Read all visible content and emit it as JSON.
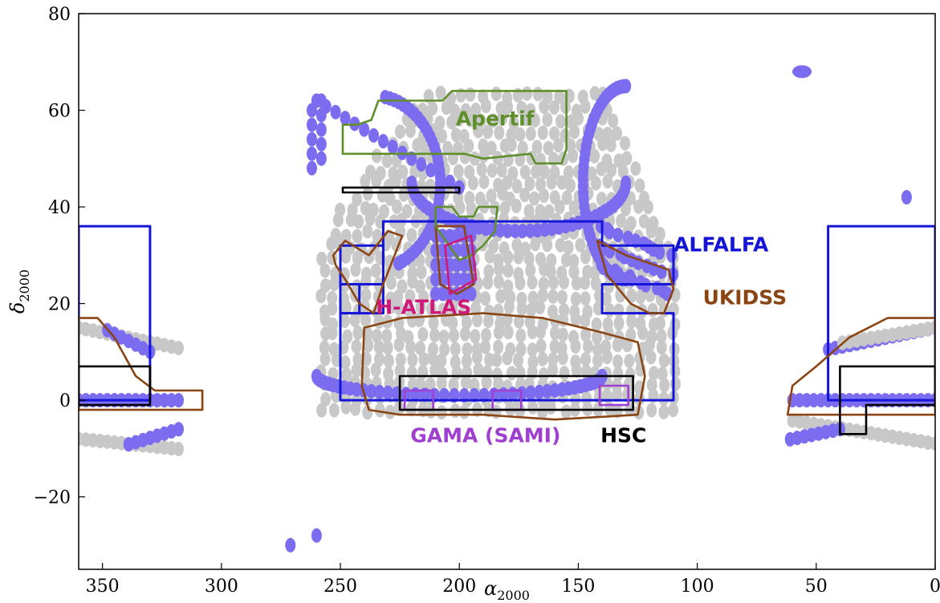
{
  "chart_data": {
    "type": "scatter",
    "xlabel": "α",
    "xlabel_sub": "2000",
    "ylabel": "δ",
    "ylabel_sub": "2000",
    "xlim": [
      360,
      0
    ],
    "ylim": [
      -35,
      80
    ],
    "xticks": [
      350,
      300,
      250,
      200,
      150,
      100,
      50,
      0
    ],
    "yticks": [
      -20,
      0,
      20,
      40,
      60,
      80
    ],
    "grid": false,
    "legend": "none",
    "colors": {
      "grey_points": "#c8c8c8",
      "purple_points": "#7b6cf0",
      "ALFALFA": "#1515d8",
      "UKIDSS": "#8b4513",
      "Apertif": "#5f8f2a",
      "H-ATLAS": "#d0187a",
      "GAMA (SAMI)": "#a040d0",
      "HSC": "#000000"
    },
    "point_sample": {
      "grey_footprint": {
        "ra_range": [
          110,
          260
        ],
        "dec_range": [
          -3,
          65
        ]
      },
      "purple_isolated": [
        [
          56,
          68
        ],
        [
          12,
          42
        ],
        [
          271,
          -30
        ],
        [
          260,
          -28
        ]
      ]
    },
    "survey_labels": [
      {
        "text": "Apertif",
        "ra": 185,
        "dec": 58,
        "color": "#5f8f2a"
      },
      {
        "text": "ALFALFA",
        "ra": 90,
        "dec": 32,
        "color": "#1515d8"
      },
      {
        "text": "UKIDSS",
        "ra": 80,
        "dec": 21,
        "color": "#8b4513"
      },
      {
        "text": "H-ATLAS",
        "ra": 215,
        "dec": 19,
        "color": "#d0187a"
      },
      {
        "text": "GAMA (SAMI)",
        "ra": 189,
        "dec": -7.5,
        "color": "#a040d0"
      },
      {
        "text": "HSC",
        "ra": 131,
        "dec": -7.5,
        "color": "#000000"
      }
    ],
    "regions": [
      {
        "survey": "ALFALFA",
        "color": "#1515d8",
        "points": [
          [
            250,
            0
          ],
          [
            110,
            0
          ],
          [
            110,
            18
          ],
          [
            140,
            18
          ],
          [
            140,
            24
          ],
          [
            110,
            24
          ],
          [
            110,
            32
          ],
          [
            140,
            32
          ],
          [
            140,
            37
          ],
          [
            232,
            37
          ],
          [
            232,
            18
          ],
          [
            250,
            18
          ]
        ]
      },
      {
        "survey": "ALFALFA",
        "color": "#1515d8",
        "points": [
          [
            250,
            24
          ],
          [
            242,
            24
          ],
          [
            242,
            18
          ],
          [
            250,
            18
          ]
        ]
      },
      {
        "survey": "ALFALFA",
        "color": "#1515d8",
        "points": [
          [
            360,
            0
          ],
          [
            330,
            0
          ],
          [
            330,
            36
          ],
          [
            360,
            36
          ]
        ]
      },
      {
        "survey": "ALFALFA",
        "color": "#1515d8",
        "points": [
          [
            0,
            0
          ],
          [
            45,
            0
          ],
          [
            45,
            36
          ],
          [
            0,
            36
          ]
        ]
      },
      {
        "survey": "ALFALFA",
        "color": "#1515d8",
        "points": [
          [
            250,
            32
          ],
          [
            232,
            32
          ],
          [
            232,
            24
          ],
          [
            250,
            24
          ]
        ]
      },
      {
        "survey": "UKIDSS",
        "color": "#8b4513",
        "points": [
          [
            240,
            15
          ],
          [
            224,
            17
          ],
          [
            190,
            18
          ],
          [
            165,
            17
          ],
          [
            140,
            14
          ],
          [
            125,
            12
          ],
          [
            122,
            5
          ],
          [
            125,
            -3
          ],
          [
            160,
            -4
          ],
          [
            190,
            -3
          ],
          [
            225,
            -3
          ],
          [
            238,
            -2
          ],
          [
            241,
            3
          ]
        ]
      },
      {
        "survey": "UKIDSS",
        "color": "#8b4513",
        "points": [
          [
            253,
            30
          ],
          [
            248,
            33
          ],
          [
            238,
            30
          ],
          [
            230,
            35
          ],
          [
            224,
            34
          ],
          [
            232,
            24
          ],
          [
            236,
            18
          ],
          [
            242,
            20
          ],
          [
            248,
            25
          ],
          [
            252,
            28
          ]
        ]
      },
      {
        "survey": "UKIDSS",
        "color": "#8b4513",
        "points": [
          [
            210,
            36
          ],
          [
            198,
            36
          ],
          [
            194,
            24
          ],
          [
            201,
            22
          ],
          [
            208,
            24
          ]
        ]
      },
      {
        "survey": "UKIDSS",
        "color": "#8b4513",
        "points": [
          [
            142,
            33
          ],
          [
            130,
            30
          ],
          [
            112,
            27
          ],
          [
            110,
            23
          ],
          [
            114,
            18
          ],
          [
            120,
            18
          ],
          [
            128,
            20
          ],
          [
            138,
            26
          ]
        ]
      },
      {
        "survey": "UKIDSS",
        "color": "#8b4513",
        "points": [
          [
            360,
            17
          ],
          [
            352,
            17
          ],
          [
            345,
            13
          ],
          [
            336,
            5
          ],
          [
            328,
            2
          ],
          [
            308,
            2
          ],
          [
            308,
            -2
          ],
          [
            360,
            -2
          ]
        ]
      },
      {
        "survey": "UKIDSS",
        "color": "#8b4513",
        "points": [
          [
            0,
            17
          ],
          [
            20,
            17
          ],
          [
            36,
            13
          ],
          [
            50,
            7
          ],
          [
            60,
            3
          ],
          [
            62,
            -3
          ],
          [
            0,
            -3
          ]
        ]
      },
      {
        "survey": "Apertif",
        "color": "#5f8f2a",
        "points": [
          [
            249,
            51
          ],
          [
            249,
            57
          ],
          [
            243,
            57
          ],
          [
            237,
            58
          ],
          [
            234,
            62
          ],
          [
            207,
            62
          ],
          [
            203,
            64
          ],
          [
            155,
            64
          ],
          [
            155,
            52
          ],
          [
            157,
            49
          ],
          [
            168,
            49
          ],
          [
            170,
            51
          ],
          [
            190,
            50
          ],
          [
            198,
            51
          ],
          [
            235,
            51
          ]
        ]
      },
      {
        "survey": "Apertif",
        "color": "#5f8f2a",
        "points": [
          [
            210,
            40
          ],
          [
            210,
            36
          ],
          [
            200,
            29
          ],
          [
            195,
            30
          ],
          [
            190,
            32
          ],
          [
            185,
            35
          ],
          [
            184,
            40
          ],
          [
            192,
            40
          ],
          [
            194,
            38
          ],
          [
            200,
            38
          ],
          [
            203,
            40
          ]
        ]
      },
      {
        "survey": "H-ATLAS",
        "color": "#d0187a",
        "points": [
          [
            206,
            32
          ],
          [
            195,
            34
          ],
          [
            193,
            25
          ],
          [
            204,
            22
          ]
        ]
      },
      {
        "survey": "GAMA (SAMI)",
        "color": "#a040d0",
        "points": [
          [
            223,
            -2
          ],
          [
            211,
            -2
          ],
          [
            211,
            2
          ],
          [
            223,
            2
          ]
        ]
      },
      {
        "survey": "GAMA (SAMI)",
        "color": "#a040d0",
        "points": [
          [
            186,
            -2
          ],
          [
            174,
            -2
          ],
          [
            174,
            2
          ],
          [
            186,
            2
          ]
        ]
      },
      {
        "survey": "GAMA (SAMI)",
        "color": "#a040d0",
        "points": [
          [
            141,
            -1
          ],
          [
            129,
            -1
          ],
          [
            129,
            3
          ],
          [
            141,
            3
          ]
        ]
      },
      {
        "survey": "HSC",
        "color": "#000000",
        "points": [
          [
            225,
            -2
          ],
          [
            127,
            -2
          ],
          [
            127,
            5
          ],
          [
            225,
            5
          ]
        ]
      },
      {
        "survey": "HSC",
        "color": "#000000",
        "points": [
          [
            249,
            43
          ],
          [
            200,
            43
          ],
          [
            200,
            44
          ],
          [
            249,
            44
          ]
        ]
      },
      {
        "survey": "HSC",
        "color": "#000000",
        "points": [
          [
            360,
            7
          ],
          [
            330,
            7
          ],
          [
            330,
            -1
          ],
          [
            360,
            -1
          ]
        ]
      },
      {
        "survey": "HSC",
        "color": "#000000",
        "points": [
          [
            0,
            7
          ],
          [
            40,
            7
          ],
          [
            40,
            -7
          ],
          [
            29,
            -7
          ],
          [
            29,
            -1
          ],
          [
            0,
            -1
          ]
        ]
      }
    ]
  }
}
